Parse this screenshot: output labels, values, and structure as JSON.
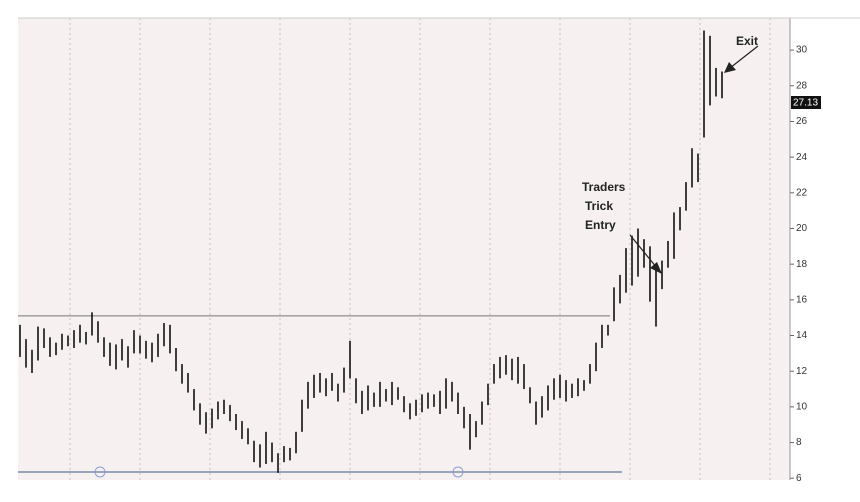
{
  "chart_data": {
    "type": "ohlc",
    "high": [
      14.6,
      13.8,
      13.2,
      14.5,
      14.4,
      13.9,
      13.6,
      14.1,
      14.0,
      14.3,
      14.6,
      14.2,
      15.3,
      14.8,
      13.9,
      13.6,
      13.5,
      13.8,
      13.4,
      14.3,
      14.0,
      13.7,
      13.6,
      14.1,
      14.7,
      14.6,
      13.3,
      12.4,
      11.9,
      11.0,
      10.2,
      9.7,
      9.9,
      10.3,
      10.4,
      10.1,
      9.6,
      9.2,
      8.8,
      8.1,
      7.9,
      8.6,
      8.0,
      7.4,
      7.8,
      7.7,
      8.6,
      10.4,
      11.4,
      11.8,
      11.9,
      11.6,
      11.9,
      11.3,
      12.2,
      13.7,
      11.6,
      10.9,
      11.2,
      10.8,
      11.4,
      11.0,
      11.4,
      11.1,
      10.6,
      10.2,
      10.4,
      10.7,
      10.8,
      10.7,
      10.9,
      11.6,
      11.4,
      10.8,
      10.0,
      9.6,
      9.2,
      10.3,
      11.3,
      12.4,
      12.8,
      12.9,
      12.7,
      12.8,
      12.4,
      11.1,
      10.3,
      10.6,
      11.2,
      11.6,
      11.8,
      11.5,
      11.3,
      11.6,
      11.5,
      12.4,
      13.6,
      14.6,
      14.6,
      16.7,
      17.4,
      18.9,
      19.6,
      20.0,
      19.4,
      19.0,
      17.8,
      18.2,
      19.3,
      20.9,
      21.2,
      22.6,
      24.5,
      24.2,
      31.1,
      30.8,
      29.0,
      28.8
    ],
    "low": [
      12.8,
      12.2,
      11.9,
      12.6,
      13.3,
      12.8,
      12.9,
      13.2,
      13.4,
      13.3,
      13.6,
      13.5,
      14.0,
      13.6,
      12.8,
      12.3,
      12.1,
      12.6,
      12.2,
      13.0,
      13.0,
      12.7,
      12.5,
      12.8,
      13.4,
      13.0,
      12.0,
      11.3,
      10.8,
      9.8,
      9.0,
      8.5,
      8.8,
      9.3,
      9.6,
      9.2,
      8.7,
      8.2,
      7.9,
      6.9,
      6.6,
      6.8,
      6.9,
      6.3,
      6.9,
      7.0,
      7.4,
      8.6,
      9.9,
      10.5,
      10.8,
      10.6,
      10.9,
      10.3,
      10.8,
      11.6,
      10.2,
      9.6,
      9.8,
      10.0,
      10.0,
      10.3,
      10.1,
      10.4,
      9.7,
      9.3,
      9.5,
      9.7,
      9.9,
      10.0,
      9.6,
      9.9,
      10.3,
      9.6,
      8.8,
      7.6,
      8.3,
      9.0,
      10.1,
      11.3,
      11.6,
      11.8,
      11.5,
      11.3,
      11.0,
      10.2,
      9.0,
      9.4,
      9.8,
      10.4,
      10.5,
      10.3,
      10.5,
      10.6,
      10.9,
      11.3,
      12.0,
      13.3,
      14.0,
      14.8,
      15.8,
      16.4,
      16.8,
      17.3,
      17.8,
      15.9,
      14.5,
      16.6,
      17.8,
      18.3,
      19.9,
      21.0,
      22.3,
      22.6,
      25.1,
      26.9,
      27.4,
      27.3
    ],
    "color": "#111111",
    "ylim": [
      5.9,
      31.8
    ],
    "yticks": [
      6,
      8,
      10,
      12,
      14,
      16,
      18,
      20,
      22,
      24,
      26,
      28,
      30
    ],
    "hlines": [
      15.1,
      6.35
    ],
    "grid": true,
    "last_price_label": "27.13",
    "annotations": {
      "entry": [
        "Traders",
        "Trick",
        "Entry"
      ],
      "exit": "Exit"
    }
  }
}
